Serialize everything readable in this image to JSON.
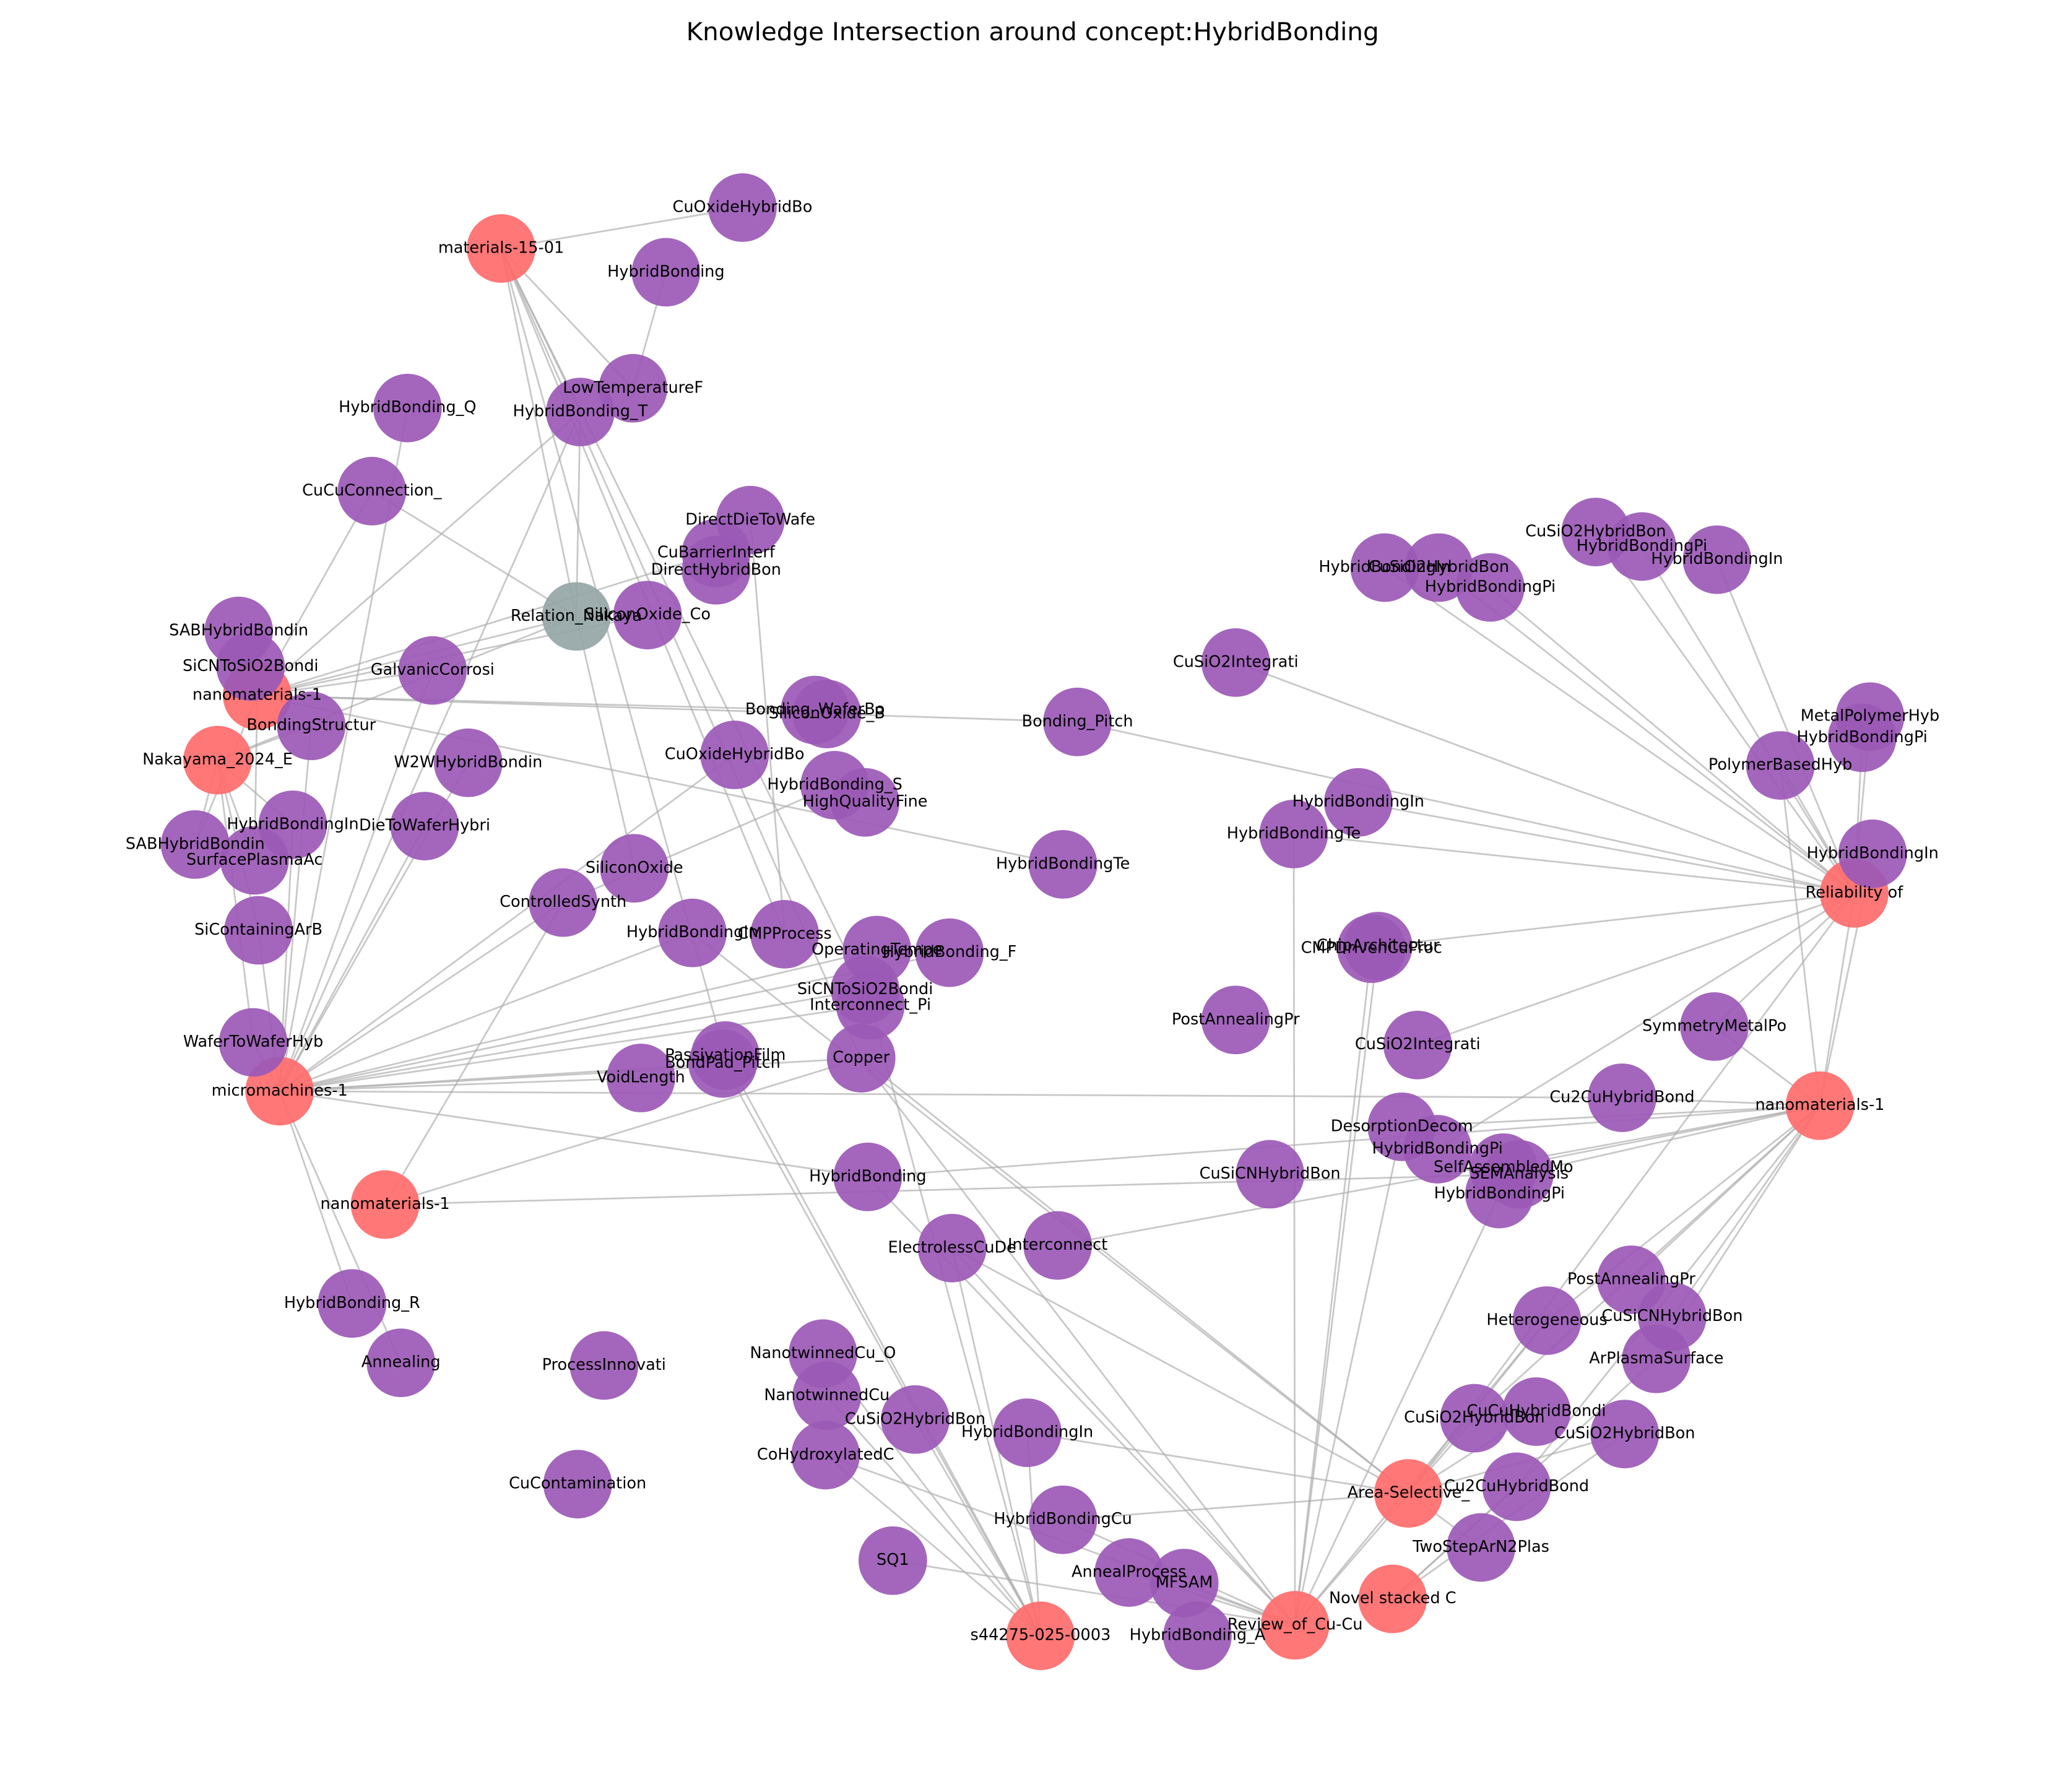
{
  "title": "Knowledge Intersection around concept:HybridBonding",
  "nodes": [
    {
      "label": "materials-15-01",
      "color": "#ff6b6b"
    },
    {
      "label": "nanomaterials-1",
      "color": "#ff6b6b"
    },
    {
      "label": "Nakayama_2024_E",
      "color": "#ff6b6b"
    },
    {
      "label": "micromachines-1",
      "color": "#ff6b6b"
    },
    {
      "label": "nanomaterials-1",
      "color": "#ff6b6b"
    },
    {
      "label": "Reliability of",
      "color": "#ff6b6b"
    },
    {
      "label": "nanomaterials-1",
      "color": "#ff6b6b"
    },
    {
      "label": "Area-Selective_",
      "color": "#ff6b6b"
    },
    {
      "label": "Novel stacked C",
      "color": "#ff6b6b"
    },
    {
      "label": "Review_of_Cu-Cu",
      "color": "#ff6b6b"
    },
    {
      "label": "s44275-025-0003",
      "color": "#ff6b6b"
    },
    {
      "label": "Relation_Nakaya",
      "color": "#95a5a6"
    },
    {
      "label": "CuOxideHybridBo",
      "color": "#9b59b6"
    },
    {
      "label": "HybridBonding",
      "color": "#9b59b6"
    },
    {
      "label": "LowTemperatureF",
      "color": "#9b59b6"
    },
    {
      "label": "HybridBonding_T",
      "color": "#9b59b6"
    },
    {
      "label": "HybridBonding_Q",
      "color": "#9b59b6"
    },
    {
      "label": "CuCuConnection_",
      "color": "#9b59b6"
    },
    {
      "label": "DirectDieToWafe",
      "color": "#9b59b6"
    },
    {
      "label": "CuBarrierInterf",
      "color": "#9b59b6"
    },
    {
      "label": "DirectHybridBon",
      "color": "#9b59b6"
    },
    {
      "label": "SiliconOxide_Co",
      "color": "#9b59b6"
    },
    {
      "label": "SABHybridBondin",
      "color": "#9b59b6"
    },
    {
      "label": "SiCNToSiO2Bondi",
      "color": "#9b59b6"
    },
    {
      "label": "GalvanicCorrosi",
      "color": "#9b59b6"
    },
    {
      "label": "BondingStructur",
      "color": "#9b59b6"
    },
    {
      "label": "W2WHybridBondin",
      "color": "#9b59b6"
    },
    {
      "label": "Bonding_WaferBo",
      "color": "#9b59b6"
    },
    {
      "label": "SiliconOxide_B",
      "color": "#9b59b6"
    },
    {
      "label": "Bonding_Pitch",
      "color": "#9b59b6"
    },
    {
      "label": "CuOxideHybridBo",
      "color": "#9b59b6"
    },
    {
      "label": "HybridBonding_S",
      "color": "#9b59b6"
    },
    {
      "label": "HighQualityFine",
      "color": "#9b59b6"
    },
    {
      "label": "HybridBondingIn",
      "color": "#9b59b6"
    },
    {
      "label": "DieToWaferHybri",
      "color": "#9b59b6"
    },
    {
      "label": "SABHybridBondin",
      "color": "#9b59b6"
    },
    {
      "label": "SurfacePlasmaAc",
      "color": "#9b59b6"
    },
    {
      "label": "SiliconOxide",
      "color": "#9b59b6"
    },
    {
      "label": "ControlledSynth",
      "color": "#9b59b6"
    },
    {
      "label": "SiContainingArB",
      "color": "#9b59b6"
    },
    {
      "label": "HybridBondingIn",
      "color": "#9b59b6"
    },
    {
      "label": "CMPProcess",
      "color": "#9b59b6"
    },
    {
      "label": "OperatingTempe",
      "color": "#9b59b6"
    },
    {
      "label": "HybridBonding_F",
      "color": "#9b59b6"
    },
    {
      "label": "SiCNToSiO2Bondi",
      "color": "#9b59b6"
    },
    {
      "label": "Interconnect_Pi",
      "color": "#9b59b6"
    },
    {
      "label": "HybridBondingTe",
      "color": "#9b59b6"
    },
    {
      "label": "WaferToWaferHyb",
      "color": "#9b59b6"
    },
    {
      "label": "VoidLength",
      "color": "#9b59b6"
    },
    {
      "label": "PassivationFilm",
      "color": "#9b59b6"
    },
    {
      "label": "BondPad_Pitch",
      "color": "#9b59b6"
    },
    {
      "label": "Copper",
      "color": "#9b59b6"
    },
    {
      "label": "HybridBonding",
      "color": "#9b59b6"
    },
    {
      "label": "ElectrolessCuDe",
      "color": "#9b59b6"
    },
    {
      "label": "Interconnect",
      "color": "#9b59b6"
    },
    {
      "label": "HybridBonding_R",
      "color": "#9b59b6"
    },
    {
      "label": "Annealing",
      "color": "#9b59b6"
    },
    {
      "label": "ProcessInnovati",
      "color": "#9b59b6"
    },
    {
      "label": "CuContamination",
      "color": "#9b59b6"
    },
    {
      "label": "NanotwinnedCu_O",
      "color": "#9b59b6"
    },
    {
      "label": "NanotwinnedCu",
      "color": "#9b59b6"
    },
    {
      "label": "CuSiO2HybridBon",
      "color": "#9b59b6"
    },
    {
      "label": "CoHydroxylatedC",
      "color": "#9b59b6"
    },
    {
      "label": "HybridBondingIn",
      "color": "#9b59b6"
    },
    {
      "label": "HybridBondingCu",
      "color": "#9b59b6"
    },
    {
      "label": "SQ1",
      "color": "#9b59b6"
    },
    {
      "label": "AnnealProcess",
      "color": "#9b59b6"
    },
    {
      "label": "MFSAM",
      "color": "#9b59b6"
    },
    {
      "label": "HybridBonding_A",
      "color": "#9b59b6"
    },
    {
      "label": "CuSiO2Integrati",
      "color": "#9b59b6"
    },
    {
      "label": "HybridBondingIn",
      "color": "#9b59b6"
    },
    {
      "label": "HybridBondingTe",
      "color": "#9b59b6"
    },
    {
      "label": "ChipArchitectur",
      "color": "#9b59b6"
    },
    {
      "label": "CMPDrivenCuProc",
      "color": "#9b59b6"
    },
    {
      "label": "PostAnnealingPr",
      "color": "#9b59b6"
    },
    {
      "label": "CuSiO2Integrati",
      "color": "#9b59b6"
    },
    {
      "label": "Cu2CuHybridBond",
      "color": "#9b59b6"
    },
    {
      "label": "DesorptionDecom",
      "color": "#9b59b6"
    },
    {
      "label": "HybridBondingPi",
      "color": "#9b59b6"
    },
    {
      "label": "SelfAssembledMo",
      "color": "#9b59b6"
    },
    {
      "label": "SEMAnalysis",
      "color": "#9b59b6"
    },
    {
      "label": "HybridBondingPi",
      "color": "#9b59b6"
    },
    {
      "label": "CuSiCNHybridBon",
      "color": "#9b59b6"
    },
    {
      "label": "SymmetryMetalPo",
      "color": "#9b59b6"
    },
    {
      "label": "HybridBondingIn",
      "color": "#9b59b6"
    },
    {
      "label": "CuSiO2HybridBon",
      "color": "#9b59b6"
    },
    {
      "label": "HybridBondingPi",
      "color": "#9b59b6"
    },
    {
      "label": "CuSiO2HybridBon",
      "color": "#9b59b6"
    },
    {
      "label": "HybridBondingPi",
      "color": "#9b59b6"
    },
    {
      "label": "HybridBondingIn",
      "color": "#9b59b6"
    },
    {
      "label": "MetalPolymerHyb",
      "color": "#9b59b6"
    },
    {
      "label": "HybridBondingPi",
      "color": "#9b59b6"
    },
    {
      "label": "PolymerBasedHyb",
      "color": "#9b59b6"
    },
    {
      "label": "HybridBondingIn",
      "color": "#9b59b6"
    },
    {
      "label": "PostAnnealingPr",
      "color": "#9b59b6"
    },
    {
      "label": "CuSiCNHybridBon",
      "color": "#9b59b6"
    },
    {
      "label": "Heterogeneous",
      "color": "#9b59b6"
    },
    {
      "label": "ArPlasmaSurface",
      "color": "#9b59b6"
    },
    {
      "label": "CuCuHybridBondi",
      "color": "#9b59b6"
    },
    {
      "label": "CuSiO2HybridBon",
      "color": "#9b59b6"
    },
    {
      "label": "CuSiO2HybridBon",
      "color": "#9b59b6"
    },
    {
      "label": "Cu2CuHybridBond",
      "color": "#9b59b6"
    },
    {
      "label": "TwoStepArN2Plas",
      "color": "#9b59b6"
    }
  ]
}
